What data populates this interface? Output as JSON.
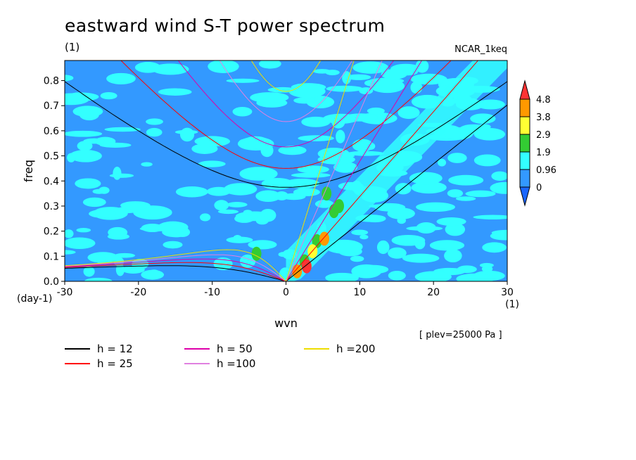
{
  "chart_data": {
    "type": "heatmap",
    "title": "eastward wind S-T power spectrum",
    "subtitle": "(1)",
    "run": "NCAR_1keq",
    "note": "[ plev=25000 Pa ]",
    "xlabel": "wvn",
    "ylabel": "freq",
    "x_unit": "(1)",
    "y_unit": "(day-1)",
    "xlim": [
      -30,
      30
    ],
    "ylim": [
      0,
      0.88
    ],
    "xticks": [
      "-30",
      "-20",
      "-10",
      "0",
      "10",
      "20",
      "30"
    ],
    "yticks": [
      "0.0",
      "0.1",
      "0.2",
      "0.3",
      "0.4",
      "0.5",
      "0.6",
      "0.7",
      "0.8"
    ],
    "colorbar": {
      "levels": [
        "0",
        "0.96",
        "1.9",
        "2.9",
        "3.8",
        "4.8"
      ],
      "colors": [
        "#3399ff",
        "#33ffff",
        "#33cc33",
        "#ffff33",
        "#ff9900",
        "#ff3333"
      ],
      "below_color": "#1a66ff",
      "above_color": "#ff3333"
    },
    "dispersion_curves": [
      {
        "name": "h = 12",
        "color": "#000000"
      },
      {
        "name": "h = 25",
        "color": "#ff0000"
      },
      {
        "name": "h = 50",
        "color": "#dd00aa"
      },
      {
        "name": "h =100",
        "color": "#e080e0"
      },
      {
        "name": "h =200",
        "color": "#eedd00"
      }
    ]
  }
}
